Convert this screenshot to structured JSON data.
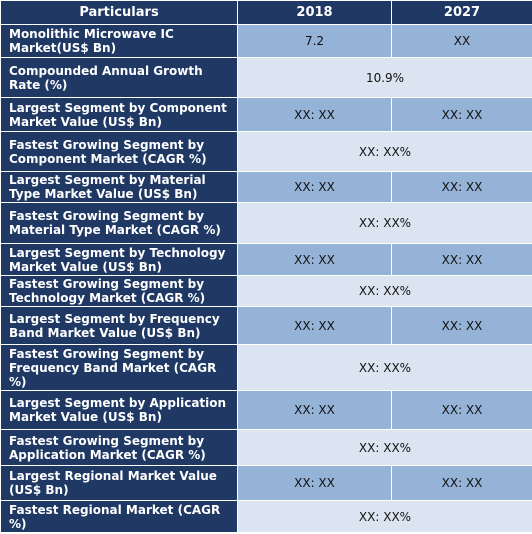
{
  "header": {
    "particulars": "Particulars",
    "year1": "2018",
    "year2": "2027"
  },
  "rows": [
    {
      "label": "Monolithic Microwave IC Market(US$ Bn)",
      "v2018": "7.2",
      "v2027": "XX"
    },
    {
      "label": "Compounded Annual Growth Rate (%)",
      "value": "10.9%"
    },
    {
      "label": "Largest Segment by Component Market Value (US$ Bn)",
      "v2018": "XX: XX",
      "v2027": "XX: XX"
    },
    {
      "label": "Fastest Growing Segment by Component Market (CAGR %)",
      "value": "XX: XX%"
    },
    {
      "label": "Largest Segment by Material Type Market Value (US$ Bn)",
      "v2018": "XX: XX",
      "v2027": "XX: XX"
    },
    {
      "label": "Fastest Growing Segment by Material Type Market (CAGR %)",
      "value": "XX: XX%"
    },
    {
      "label": "Largest Segment by Technology Market Value (US$ Bn)",
      "v2018": "XX: XX",
      "v2027": "XX: XX"
    },
    {
      "label": "Fastest Growing Segment by Technology Market (CAGR %)",
      "value": "XX: XX%"
    },
    {
      "label": "Largest Segment by Frequency Band Market Value (US$ Bn)",
      "v2018": "XX: XX",
      "v2027": "XX: XX"
    },
    {
      "label": "Fastest Growing Segment by Frequency Band Market (CAGR %)",
      "value": "XX: XX%"
    },
    {
      "label": "Largest Segment by Application Market Value (US$ Bn)",
      "v2018": "XX: XX",
      "v2027": "XX: XX"
    },
    {
      "label": "Fastest Growing Segment by Application Market (CAGR %)",
      "value": "XX: XX%"
    },
    {
      "label": "Largest Regional Market Value (US$ Bn)",
      "v2018": "XX: XX",
      "v2027": "XX: XX"
    },
    {
      "label": "Fastest Regional Market (CAGR %)",
      "value": "XX: XX%"
    }
  ],
  "colors": {
    "header_bg": "#1f3864",
    "row_dark": "#95b3d7",
    "row_light": "#dbe5f1"
  }
}
